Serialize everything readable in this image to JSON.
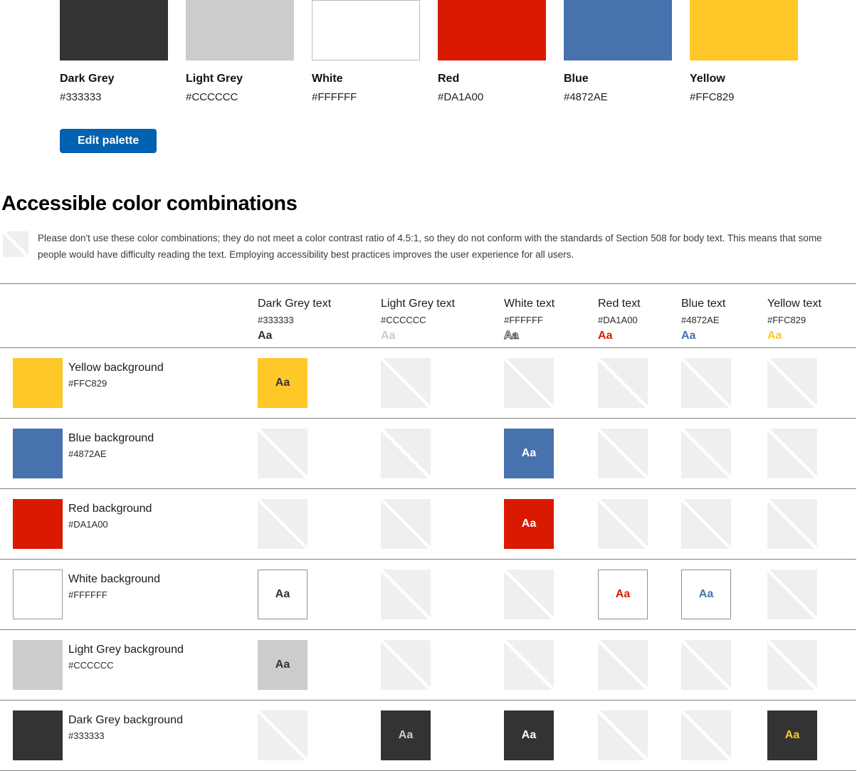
{
  "palette": {
    "swatches": [
      {
        "name": "Dark Grey",
        "hex": "#333333",
        "color": "#333333",
        "border_color": null
      },
      {
        "name": "Light Grey",
        "hex": "#CCCCCC",
        "color": "#CCCCCC",
        "border_color": null
      },
      {
        "name": "White",
        "hex": "#FFFFFF",
        "color": "#FFFFFF",
        "border_color": "#B9B9B9"
      },
      {
        "name": "Red",
        "hex": "#DA1A00",
        "color": "#DA1A00",
        "border_color": null
      },
      {
        "name": "Blue",
        "hex": "#4872AE",
        "color": "#4872AE",
        "border_color": null
      },
      {
        "name": "Yellow",
        "hex": "#FFC829",
        "color": "#FFC829",
        "border_color": null
      }
    ],
    "edit_button": {
      "label": "Edit palette",
      "color": "#0062B1"
    }
  },
  "accessibility_section": {
    "title": "Accessible color combinations",
    "note": "Please don't use these color combinations; they do not meet a color contrast ratio of 4.5:1, so they do not conform with the standards of Section 508 for body text. This means that some people would have difficulty reading the text. Employing accessibility best practices improves the user experience for all users."
  },
  "combinations_table": {
    "sample_text": "Aa",
    "fail_swatch_color": "#EFEFEF",
    "columns": [
      {
        "label": "Dark Grey text",
        "hex": "#333333",
        "text_color": "#333333",
        "outlined": false
      },
      {
        "label": "Light Grey text",
        "hex": "#CCCCCC",
        "text_color": "#CCCCCC",
        "outlined": false
      },
      {
        "label": "White text",
        "hex": "#FFFFFF",
        "text_color": "#FFFFFF",
        "outlined": true
      },
      {
        "label": "Red text",
        "hex": "#DA1A00",
        "text_color": "#DA1A00",
        "outlined": false
      },
      {
        "label": "Blue text",
        "hex": "#4872AE",
        "text_color": "#4872AE",
        "outlined": false
      },
      {
        "label": "Yellow text",
        "hex": "#FFC829",
        "text_color": "#FFC829",
        "outlined": false
      }
    ],
    "rows": [
      {
        "label": "Yellow background",
        "hex": "#FFC829",
        "bg": "#FFC829",
        "swatch_border": null,
        "cell_border": null,
        "cells": [
          "pass",
          "fail",
          "fail",
          "fail",
          "fail",
          "fail"
        ]
      },
      {
        "label": "Blue background",
        "hex": "#4872AE",
        "bg": "#4872AE",
        "swatch_border": null,
        "cell_border": null,
        "cells": [
          "fail",
          "fail",
          "pass",
          "fail",
          "fail",
          "fail"
        ]
      },
      {
        "label": "Red background",
        "hex": "#DA1A00",
        "bg": "#DA1A00",
        "swatch_border": null,
        "cell_border": null,
        "cells": [
          "fail",
          "fail",
          "pass",
          "fail",
          "fail",
          "fail"
        ]
      },
      {
        "label": "White background",
        "hex": "#FFFFFF",
        "bg": "#FFFFFF",
        "swatch_border": "#999999",
        "cell_border": "#8F8F8F",
        "cells": [
          "pass",
          "fail",
          "fail",
          "pass",
          "pass",
          "fail"
        ]
      },
      {
        "label": "Light Grey background",
        "hex": "#CCCCCC",
        "bg": "#CCCCCC",
        "swatch_border": null,
        "cell_border": null,
        "cells": [
          "pass",
          "fail",
          "fail",
          "fail",
          "fail",
          "fail"
        ]
      },
      {
        "label": "Dark Grey background",
        "hex": "#333333",
        "bg": "#333333",
        "swatch_border": null,
        "cell_border": null,
        "cells": [
          "fail",
          "pass",
          "pass",
          "fail",
          "fail",
          "pass"
        ]
      }
    ]
  }
}
